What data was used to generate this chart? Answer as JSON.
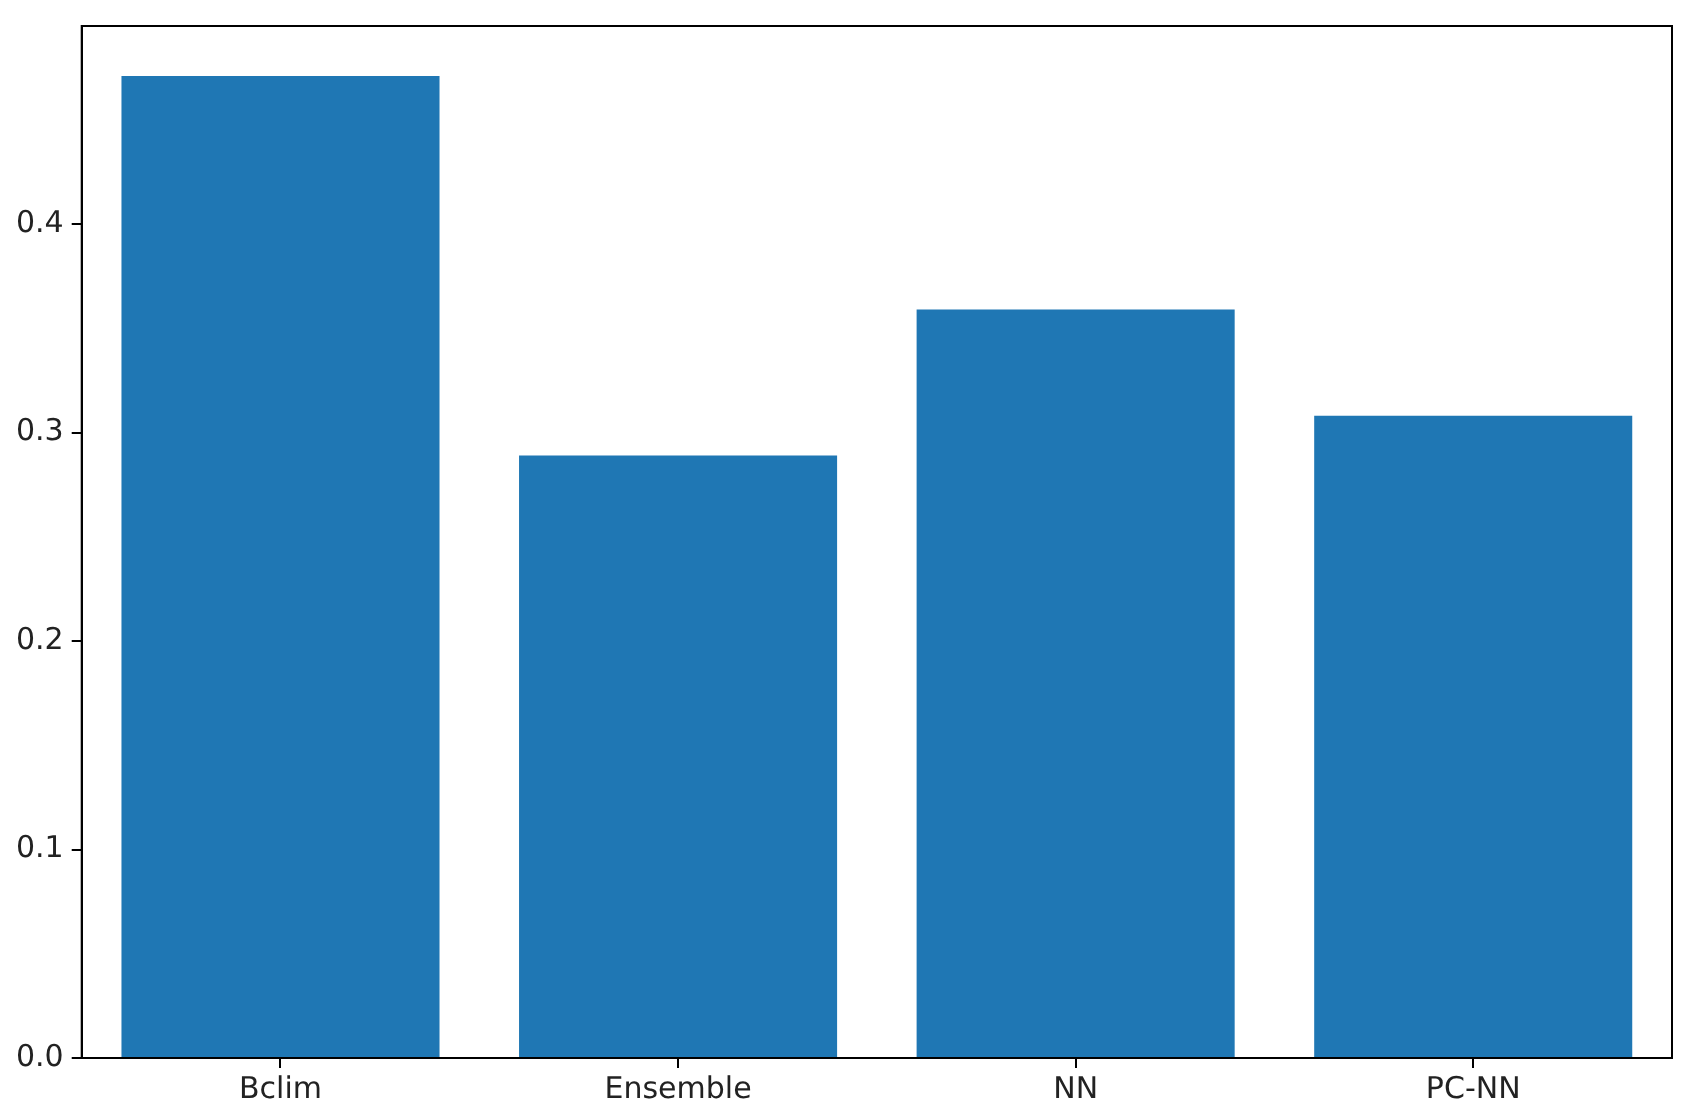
{
  "chart_data": {
    "type": "bar",
    "categories": [
      "Bclim",
      "Ensemble",
      "NN",
      "PC-NN"
    ],
    "values": [
      0.471,
      0.289,
      0.359,
      0.308
    ],
    "color": "#1f77b4",
    "ylim": [
      0,
      0.495
    ],
    "yticks": [
      {
        "value": 0,
        "label": "0.0"
      },
      {
        "value": 0.1,
        "label": "0.1"
      },
      {
        "value": 0.2,
        "label": "0.2"
      },
      {
        "value": 0.3,
        "label": "0.3"
      },
      {
        "value": 0.4,
        "label": "0.4"
      }
    ],
    "grid": false,
    "legend": false
  }
}
